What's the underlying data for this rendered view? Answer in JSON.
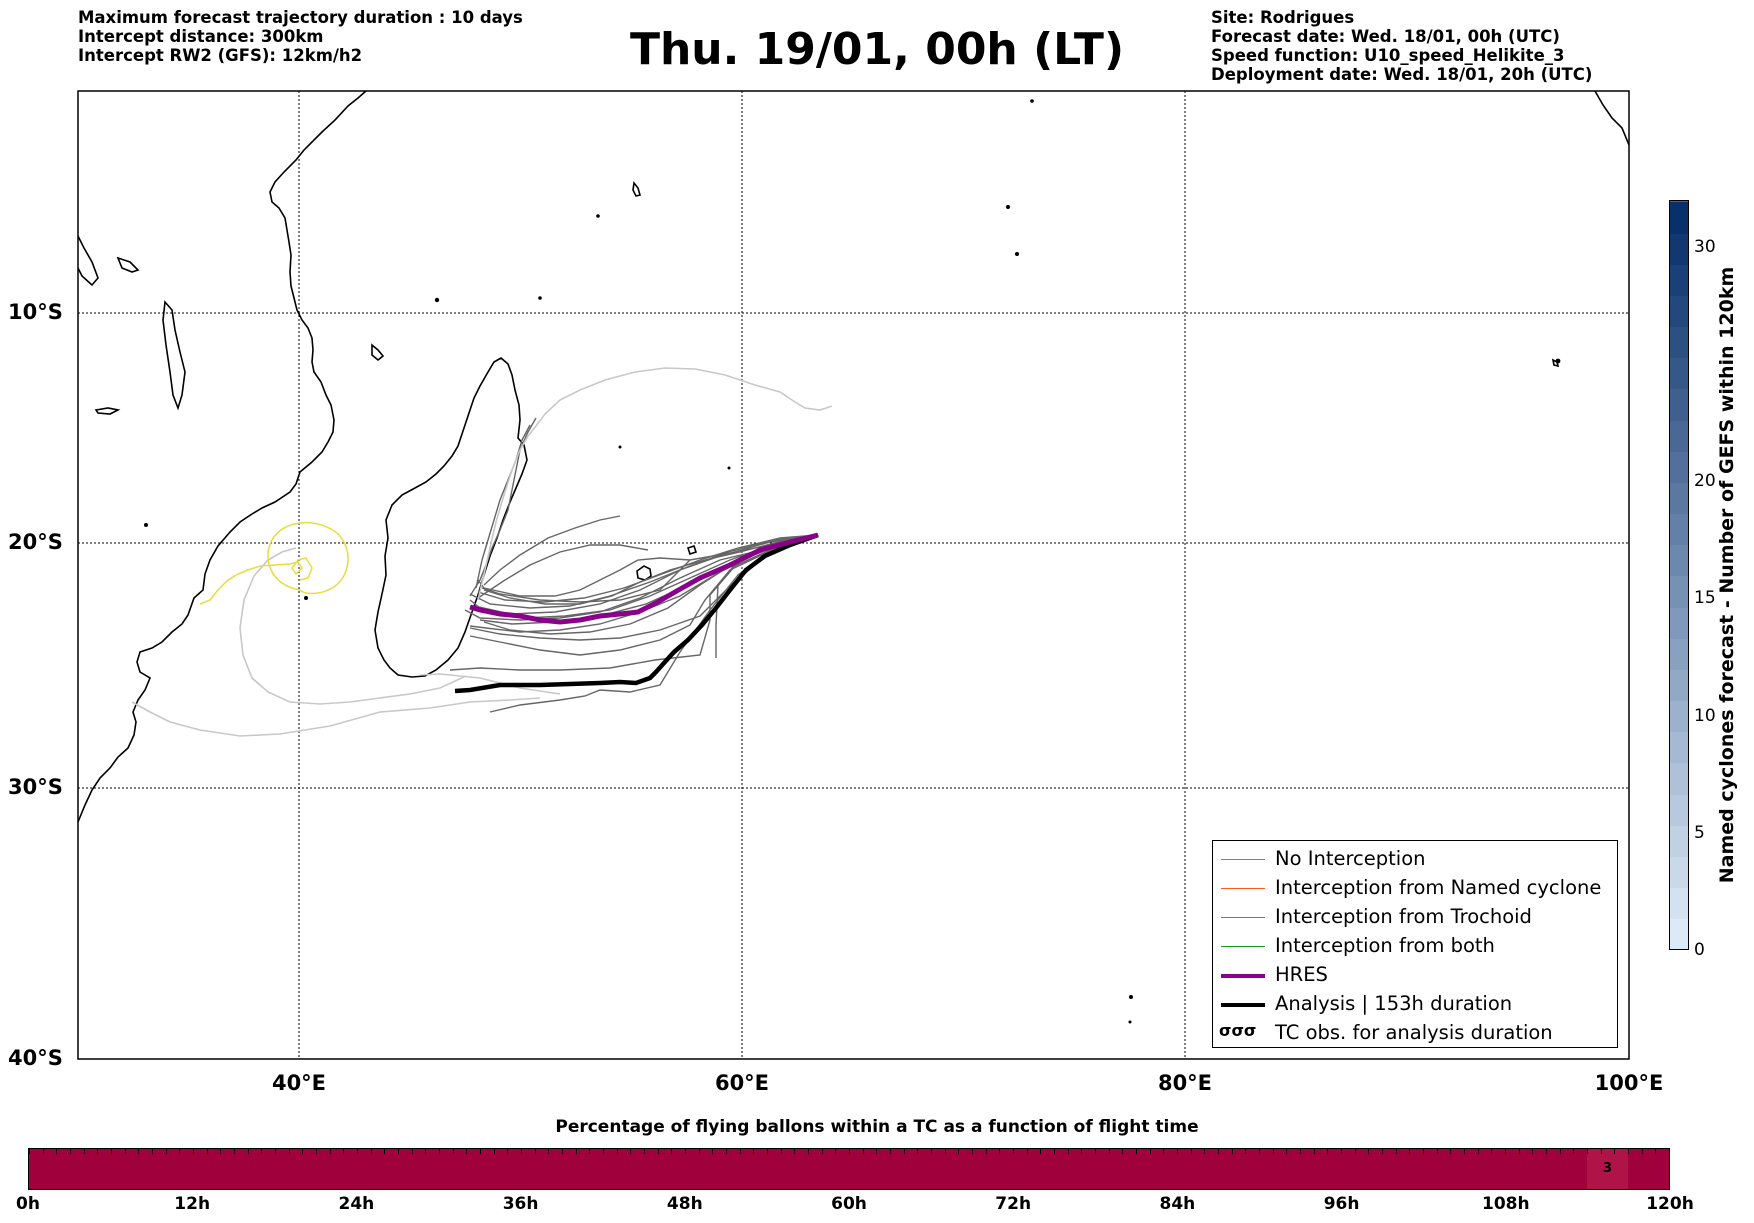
{
  "header_left": {
    "line1": "Maximum forecast trajectory duration : 10 days",
    "line2": "Intercept distance: 300km",
    "line3": "Intercept RW2 (GFS):  12km/h2"
  },
  "title": "Thu. 19/01, 00h (LT)",
  "header_right": {
    "line1": "Site: Rodrigues",
    "line2": "Forecast date: Wed. 18/01, 00h (UTC)",
    "line3": "Speed function: U10_speed_Helikite_3",
    "line4": "Deployment date: Wed. 18/01, 20h (UTC)"
  },
  "map": {
    "lon_range": [
      30,
      100
    ],
    "lat_range": [
      -40,
      0
    ],
    "lat_labels": [
      "10°S",
      "20°S",
      "30°S",
      "40°S"
    ],
    "lon_labels": [
      "40°E",
      "60°E",
      "80°E",
      "100°E"
    ],
    "gridlines": true
  },
  "legend": {
    "items": [
      {
        "label": "No Interception",
        "color": "#808080",
        "style": "thin"
      },
      {
        "label": "Interception from Named cyclone",
        "color": "#ff5a1a",
        "style": "thin"
      },
      {
        "label": "Interception from Trochoid",
        "color": "#8b7d1a",
        "style": "thin"
      },
      {
        "label": "Interception from both",
        "color": "#1a9a1a",
        "style": "thin"
      },
      {
        "label": "HRES",
        "color": "#8b008b",
        "style": "thick"
      },
      {
        "label": "Analysis | 153h duration",
        "color": "#000000",
        "style": "thick"
      },
      {
        "label": "TC obs. for analysis duration",
        "color": "#000000",
        "style": "symbol",
        "symbol": "σσσ"
      }
    ]
  },
  "colorbar": {
    "label": "Named cyclones forecast - Number of GEFS within 120km",
    "ticks": [
      "0",
      "5",
      "10",
      "15",
      "20",
      "30"
    ],
    "tick_values": [
      0,
      5,
      10,
      15,
      20,
      30
    ],
    "max": 32,
    "color_low": "#dce9f6",
    "color_high": "#08306b"
  },
  "flight_bar": {
    "title": "Percentage of flying ballons within a TC as a function of flight time",
    "tick_labels": [
      "0h",
      "12h",
      "24h",
      "36h",
      "48h",
      "60h",
      "72h",
      "84h",
      "96h",
      "108h",
      "120h"
    ],
    "max_hours": 120,
    "highlight": {
      "start_hour": 114,
      "end_hour": 117,
      "value": "3"
    },
    "bar_color": "#a0003c"
  }
}
